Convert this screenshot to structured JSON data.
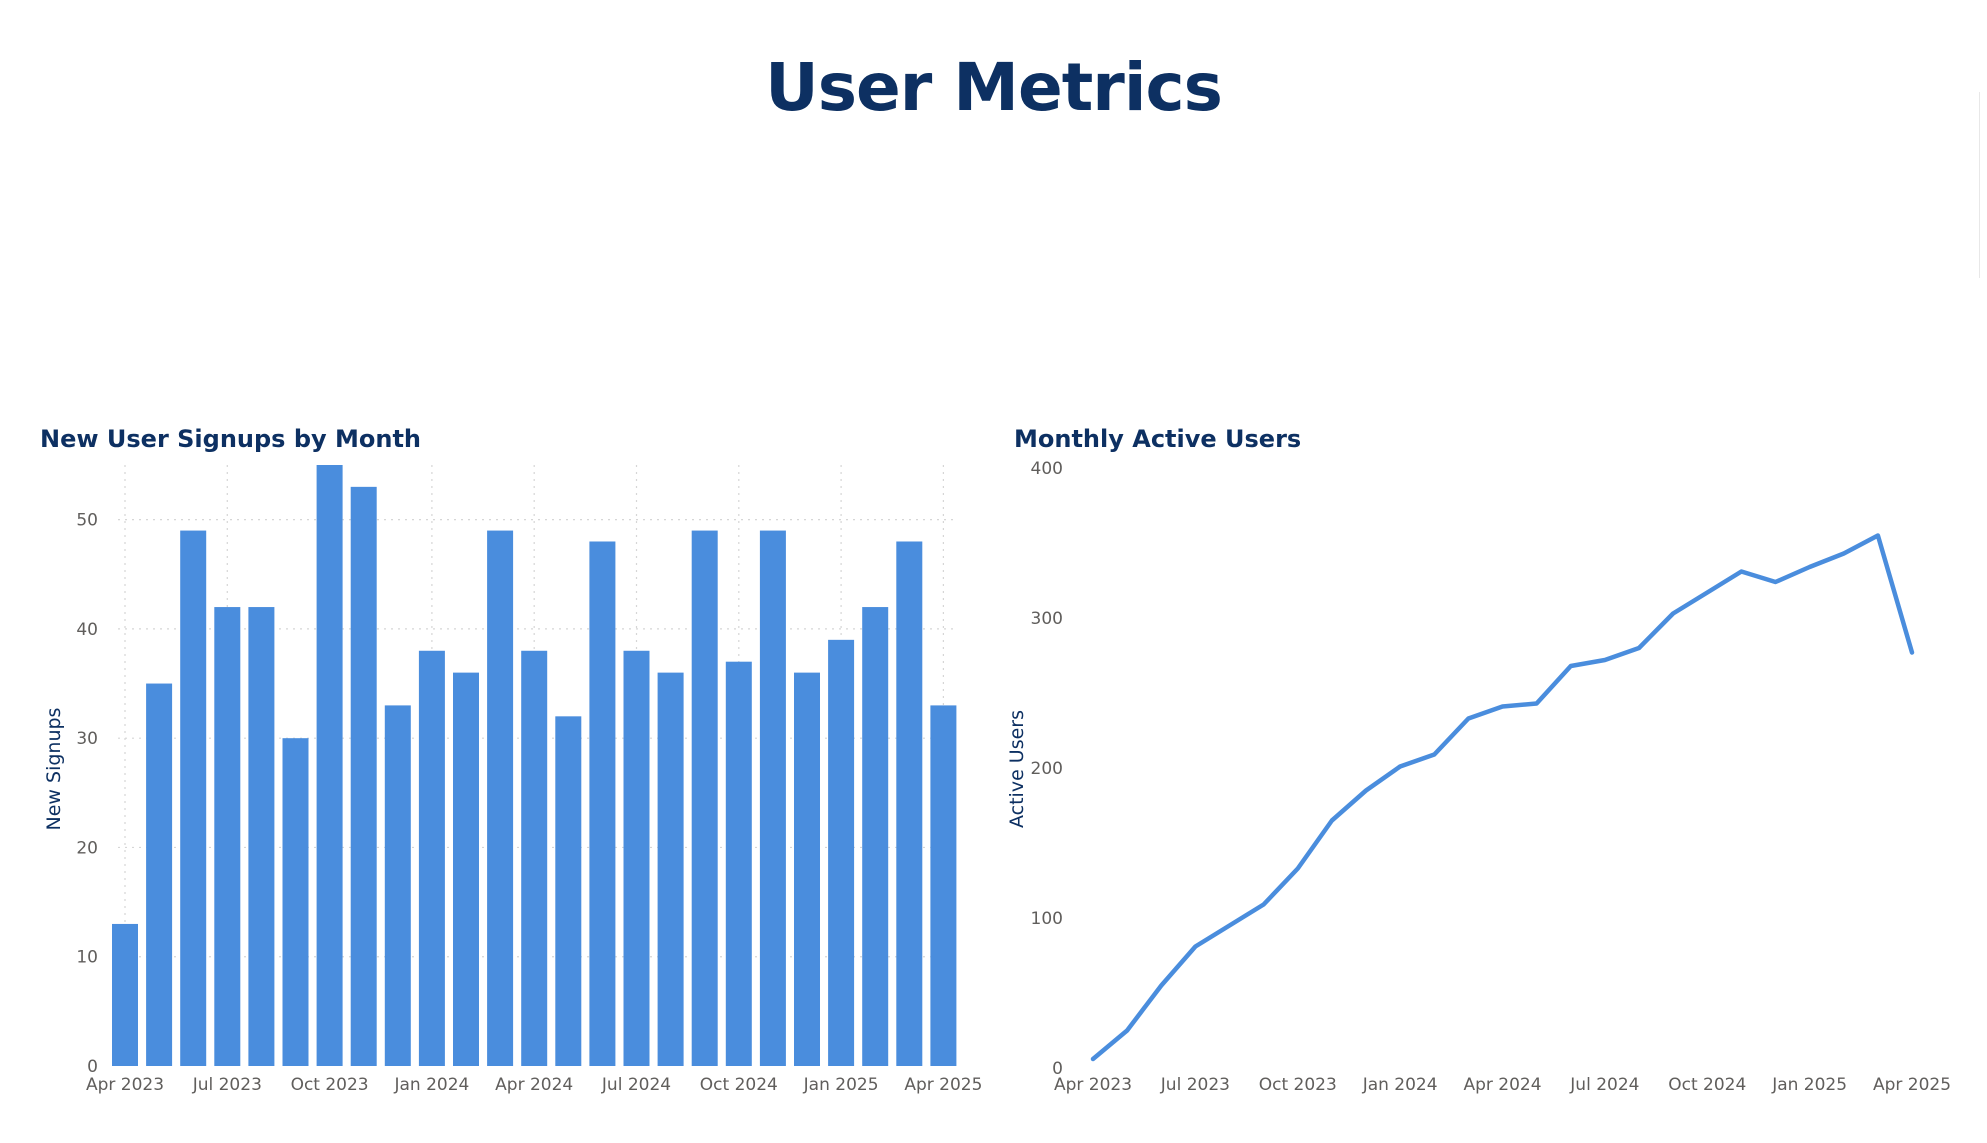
{
  "page": {
    "title": "User Metrics"
  },
  "colors": {
    "title": "#0d3062",
    "series": "#4a8ddd",
    "tick_text": "#605e5c",
    "grid": "#d6d6d6"
  },
  "chart_data": [
    {
      "type": "bar",
      "title": "New User Signups by Month",
      "xlabel": "",
      "ylabel": "New Signups",
      "ylim": [
        0,
        55
      ],
      "yticks": [
        0,
        10,
        20,
        30,
        40,
        50
      ],
      "grid": "dotted, both axes",
      "categories": [
        "2023-04",
        "2023-05",
        "2023-06",
        "2023-07",
        "2023-08",
        "2023-09",
        "2023-10",
        "2023-11",
        "2023-12",
        "2024-01",
        "2024-02",
        "2024-03",
        "2024-04",
        "2024-05",
        "2024-06",
        "2024-07",
        "2024-08",
        "2024-09",
        "2024-10",
        "2024-11",
        "2024-12",
        "2025-01",
        "2025-02",
        "2025-03",
        "2025-04"
      ],
      "xtick_labels": [
        "Apr 2023",
        "Jul 2023",
        "Oct 2023",
        "Jan 2024",
        "Apr 2024",
        "Jul 2024",
        "Oct 2024",
        "Jan 2025",
        "Apr 2025"
      ],
      "xtick_dates": [
        "2023-04",
        "2023-07",
        "2023-10",
        "2024-01",
        "2024-04",
        "2024-07",
        "2024-10",
        "2025-01",
        "2025-04"
      ],
      "values": [
        13,
        35,
        49,
        42,
        42,
        30,
        55,
        53,
        33,
        38,
        36,
        49,
        38,
        32,
        48,
        38,
        36,
        49,
        37,
        49,
        36,
        39,
        42,
        48,
        33
      ]
    },
    {
      "type": "line",
      "title": "Monthly Active Users",
      "xlabel": "",
      "ylabel": "Active Users",
      "ylim": [
        0,
        400
      ],
      "yticks": [
        0,
        100,
        200,
        300,
        400
      ],
      "grid": "off",
      "x": [
        "2023-04",
        "2023-05",
        "2023-06",
        "2023-07",
        "2023-08",
        "2023-09",
        "2023-10",
        "2023-11",
        "2023-12",
        "2024-01",
        "2024-02",
        "2024-03",
        "2024-04",
        "2024-05",
        "2024-06",
        "2024-07",
        "2024-08",
        "2024-09",
        "2024-10",
        "2024-11",
        "2024-12",
        "2025-01",
        "2025-02",
        "2025-03",
        "2025-04"
      ],
      "xtick_labels": [
        "Apr 2023",
        "Jul 2023",
        "Oct 2023",
        "Jan 2024",
        "Apr 2024",
        "Jul 2024",
        "Oct 2024",
        "Jan 2025",
        "Apr 2025"
      ],
      "xtick_dates": [
        "2023-04",
        "2023-07",
        "2023-10",
        "2024-01",
        "2024-04",
        "2024-07",
        "2024-10",
        "2025-01",
        "2025-04"
      ],
      "series": [
        {
          "values": [
            6,
            25,
            55,
            81,
            95,
            109,
            133,
            165,
            185,
            201,
            209,
            233,
            241,
            243,
            268,
            272,
            280,
            303,
            317,
            331,
            324,
            334,
            343,
            355,
            277
          ]
        }
      ]
    }
  ]
}
